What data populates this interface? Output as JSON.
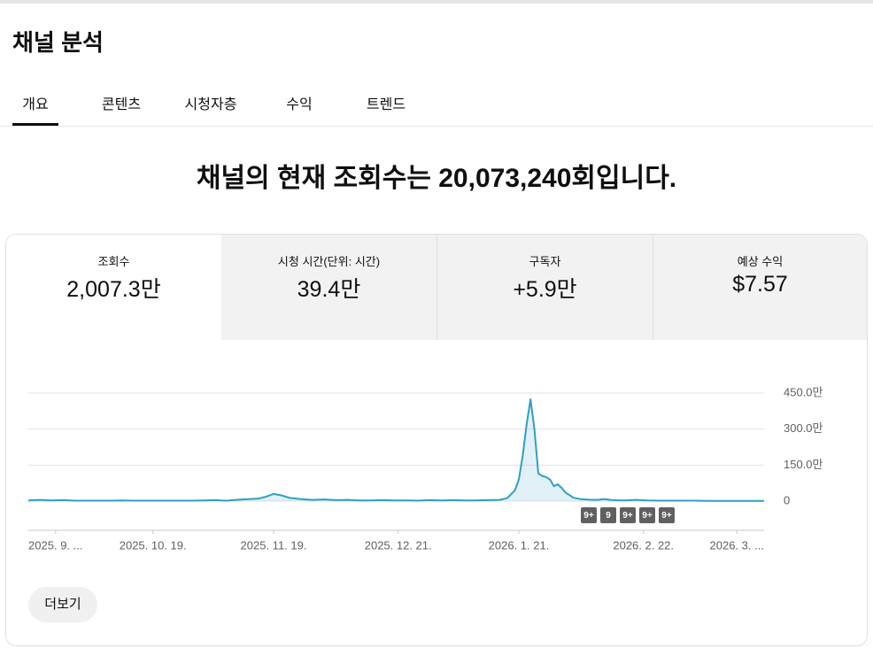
{
  "header": {
    "title": "채널 분석"
  },
  "tabs": [
    "개요",
    "콘텐츠",
    "시청자층",
    "수익",
    "트렌드"
  ],
  "headline": "채널의 현재 조회수는 20,073,240회입니다.",
  "metrics": [
    {
      "label": "조회수",
      "value": "2,007.3만"
    },
    {
      "label": "시청 시간(단위: 시간)",
      "value": "39.4만"
    },
    {
      "label": "구독자",
      "value": "+5.9만"
    },
    {
      "label": "예상 수익",
      "value": "$7.57"
    }
  ],
  "chart_data": {
    "type": "line",
    "color": "#2f9fc4",
    "grid": true,
    "xlim": [
      0,
      189
    ],
    "xticks": [
      {
        "value": 7,
        "label": "2025. 9. ..."
      },
      {
        "value": 32,
        "label": "2025. 10. 19."
      },
      {
        "value": 63,
        "label": "2025. 11. 19."
      },
      {
        "value": 95,
        "label": "2025. 12. 21."
      },
      {
        "value": 126,
        "label": "2026. 1. 21."
      },
      {
        "value": 158,
        "label": "2026. 2. 22."
      },
      {
        "value": 182,
        "label": "2026. 3. ..."
      }
    ],
    "ylim": [
      0,
      450
    ],
    "yticks": [
      0,
      {
        "value": 150,
        "label": "150.0만"
      },
      {
        "value": 300,
        "label": "300.0만"
      },
      {
        "value": 450,
        "label": "450.0만"
      }
    ],
    "x": [
      0,
      3,
      6,
      9,
      12,
      15,
      18,
      21,
      24,
      27,
      30,
      33,
      36,
      39,
      42,
      45,
      48,
      51,
      54,
      57,
      59,
      61,
      63,
      65,
      67,
      70,
      73,
      76,
      79,
      82,
      85,
      88,
      91,
      94,
      97,
      100,
      103,
      106,
      109,
      112,
      115,
      118,
      121,
      123,
      125,
      126,
      127,
      128,
      129,
      130,
      131,
      132,
      133,
      134,
      135,
      136,
      137,
      138,
      139,
      140,
      142,
      144,
      146,
      148,
      150,
      153,
      156,
      159,
      162,
      165,
      168,
      171,
      174,
      177,
      180,
      183,
      186,
      189
    ],
    "values": [
      3,
      5,
      3,
      4,
      2,
      2,
      2,
      2,
      3,
      2,
      2,
      2,
      2,
      2,
      2,
      3,
      4,
      2,
      6,
      9,
      10,
      18,
      30,
      24,
      14,
      8,
      5,
      7,
      4,
      5,
      3,
      3,
      4,
      3,
      3,
      2,
      4,
      3,
      4,
      3,
      3,
      4,
      5,
      12,
      45,
      90,
      190,
      320,
      424,
      300,
      115,
      105,
      100,
      90,
      62,
      70,
      55,
      35,
      25,
      14,
      8,
      6,
      5,
      8,
      4,
      3,
      5,
      3,
      2,
      2,
      2,
      2,
      1,
      1,
      1,
      1,
      1,
      1
    ],
    "annotations": [
      "9+",
      "9",
      "9+",
      "9+",
      "9+"
    ]
  },
  "button": "더보기"
}
